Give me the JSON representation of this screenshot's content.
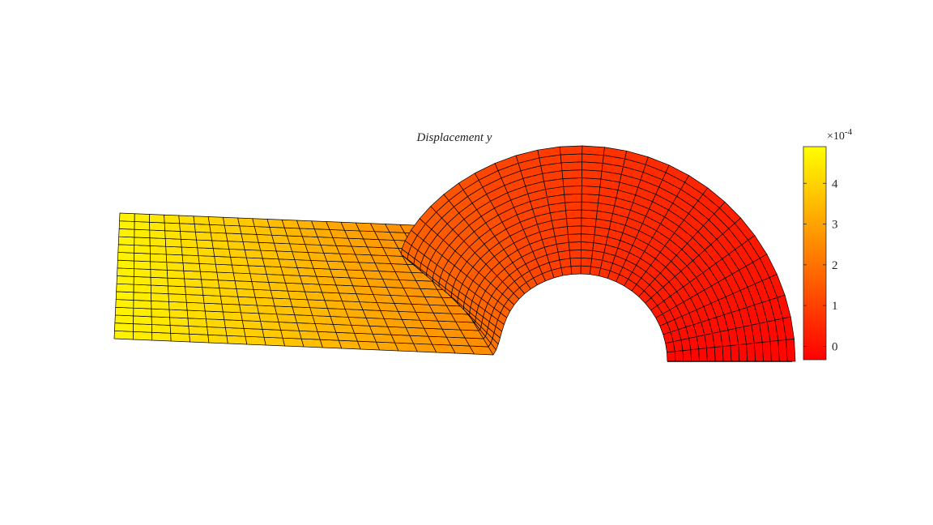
{
  "figure": {
    "title": "Displacement y",
    "mesh_edge_color": "#000000",
    "colormap": [
      "#ff0000",
      "#ff8000",
      "#ffff00"
    ]
  },
  "colorbar": {
    "exponent_prefix": "×10",
    "exponent_power": "-4",
    "ticks": [
      {
        "value": 4,
        "label": "4"
      },
      {
        "value": 3,
        "label": "3"
      },
      {
        "value": 2,
        "label": "2"
      },
      {
        "value": 1,
        "label": "1"
      },
      {
        "value": 0,
        "label": "0"
      }
    ],
    "range": [
      -0.33,
      4.9
    ]
  },
  "chart_data": {
    "type": "heatmap",
    "title": "Displacement y",
    "field": "Displacement y",
    "color_scale": {
      "min": -0.33,
      "max": 4.9,
      "multiplier": "1e-4"
    },
    "colorbar_ticks": [
      0,
      1,
      2,
      3,
      4
    ]
  }
}
